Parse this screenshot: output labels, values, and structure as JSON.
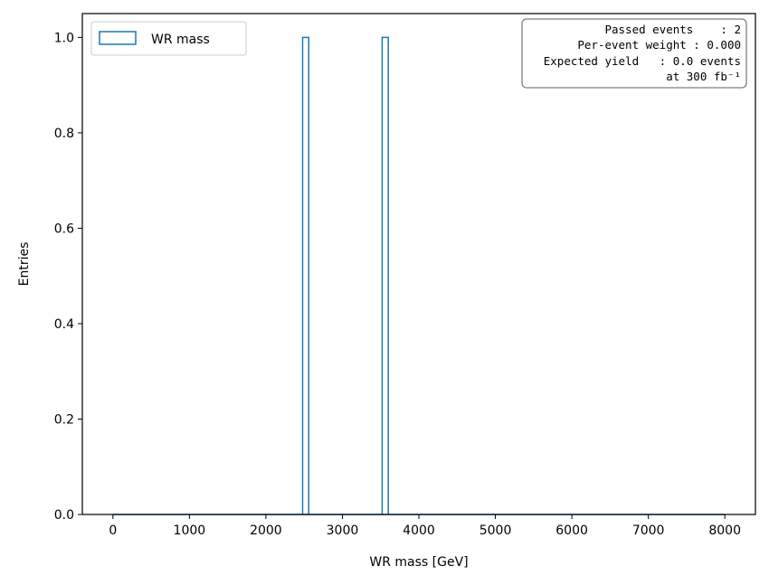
{
  "chart_data": {
    "type": "bar",
    "histtype": "step",
    "xlabel": "WR mass [GeV]",
    "ylabel": "Entries",
    "xlim": [
      -400,
      8400
    ],
    "ylim": [
      0,
      1.05
    ],
    "xticks": [
      "0",
      "1000",
      "2000",
      "3000",
      "4000",
      "5000",
      "6000",
      "7000",
      "8000"
    ],
    "yticks": [
      "0.0",
      "0.2",
      "0.4",
      "0.6",
      "0.8",
      "1.0"
    ],
    "bin_width": 80,
    "series": [
      {
        "name": "WR mass",
        "color": "#1f77b4",
        "bins": [
          {
            "x0": 2480,
            "x1": 2560,
            "count": 1
          },
          {
            "x0": 3520,
            "x1": 3600,
            "count": 1
          }
        ]
      }
    ],
    "legend": {
      "position": "upper-left",
      "label": "WR mass"
    },
    "info_box": {
      "position": "upper-right",
      "lines": [
        "Passed events    : 2",
        "Per-event weight : 0.000",
        "Expected yield   : 0.0 events",
        "at 300 fb⁻¹"
      ]
    }
  }
}
